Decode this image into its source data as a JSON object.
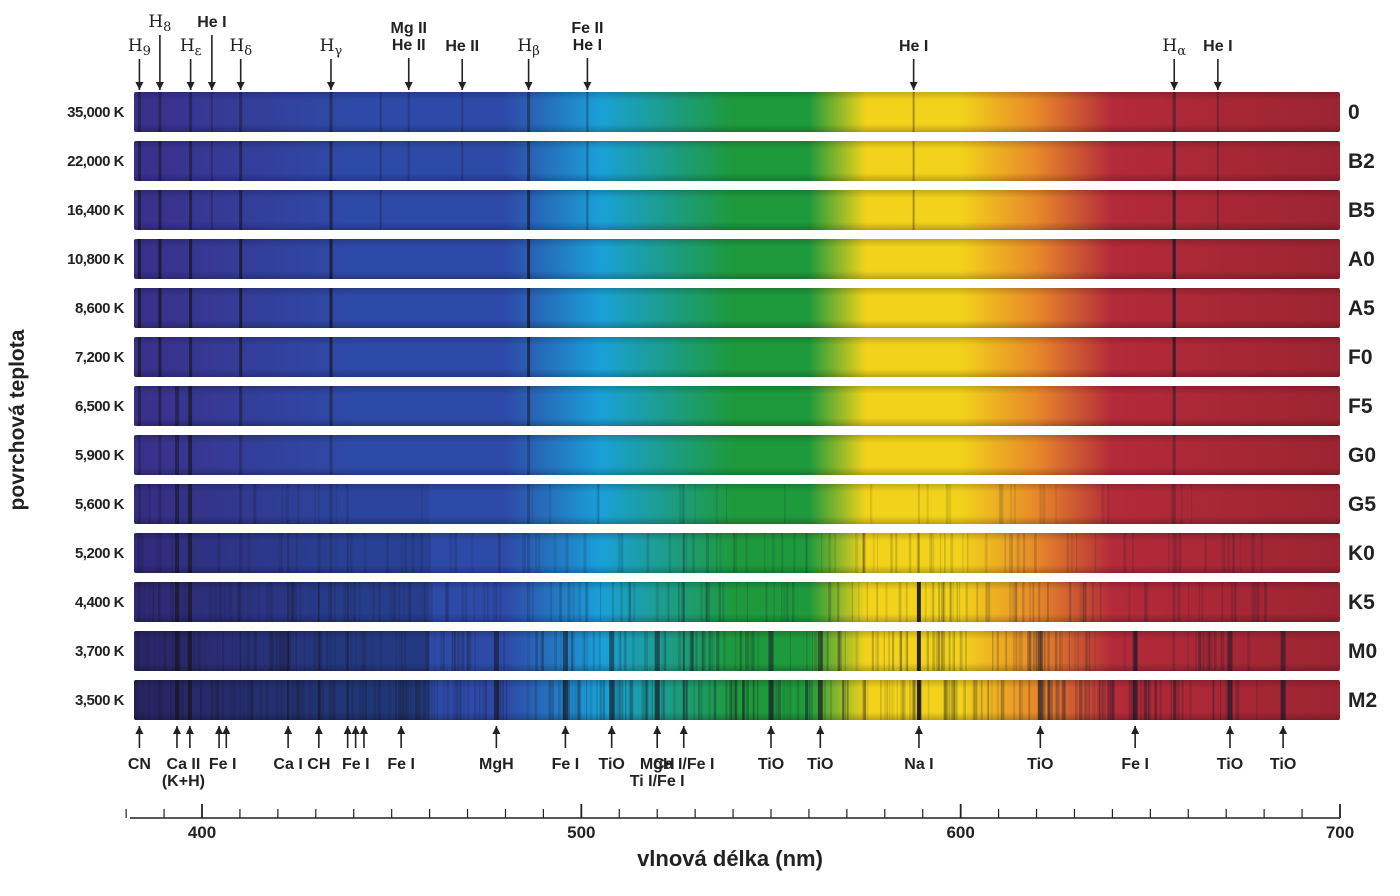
{
  "y_axis_label": "povrchová teplota",
  "x_axis_label": "vlnová délka",
  "x_axis_unit": "(nm)",
  "x_axis": {
    "min": 380,
    "max": 700,
    "major_ticks": [
      400,
      500,
      600,
      700
    ],
    "minor_step": 10
  },
  "spectral_classes": [
    {
      "temperature": "35,000 K",
      "class": "0"
    },
    {
      "temperature": "22,000 K",
      "class": "B2"
    },
    {
      "temperature": "16,400 K",
      "class": "B5"
    },
    {
      "temperature": "10,800 K",
      "class": "A0"
    },
    {
      "temperature": "8,600 K",
      "class": "A5"
    },
    {
      "temperature": "7,200 K",
      "class": "F0"
    },
    {
      "temperature": "6,500 K",
      "class": "F5"
    },
    {
      "temperature": "5,900 K",
      "class": "G0"
    },
    {
      "temperature": "5,600 K",
      "class": "G5"
    },
    {
      "temperature": "5,200 K",
      "class": "K0"
    },
    {
      "temperature": "4,400 K",
      "class": "K5"
    },
    {
      "temperature": "3,700 K",
      "class": "M0"
    },
    {
      "temperature": "3,500 K",
      "class": "M2"
    }
  ],
  "top_lines": [
    {
      "element": "H",
      "sub": "9",
      "greek": false,
      "wavelength": 383.5,
      "level": 1
    },
    {
      "element": "H",
      "sub": "8",
      "greek": false,
      "wavelength": 388.9,
      "level": 0
    },
    {
      "element": "H",
      "sub": "ε",
      "greek": true,
      "wavelength": 397.0,
      "level": 1
    },
    {
      "element": "He I",
      "sub": "",
      "greek": false,
      "wavelength": 402.6,
      "level": 0
    },
    {
      "element": "H",
      "sub": "δ",
      "greek": true,
      "wavelength": 410.2,
      "level": 1
    },
    {
      "element": "H",
      "sub": "γ",
      "greek": true,
      "wavelength": 434.0,
      "level": 1
    },
    {
      "element": "Mg II\nHe II",
      "sub": "",
      "greek": false,
      "wavelength": 454.5,
      "level": 0
    },
    {
      "element": "He II",
      "sub": "",
      "greek": false,
      "wavelength": 468.6,
      "level": 1
    },
    {
      "element": "H",
      "sub": "β",
      "greek": true,
      "wavelength": 486.1,
      "level": 1
    },
    {
      "element": "Fe II\nHe I",
      "sub": "",
      "greek": false,
      "wavelength": 501.6,
      "level": 0
    },
    {
      "element": "He I",
      "sub": "",
      "greek": false,
      "wavelength": 587.6,
      "level": 1
    },
    {
      "element": "H",
      "sub": "α",
      "greek": true,
      "wavelength": 656.3,
      "level": 1
    },
    {
      "element": "He I",
      "sub": "",
      "greek": false,
      "wavelength": 667.8,
      "level": 1
    }
  ],
  "bottom_lines": [
    {
      "label": "CN",
      "wavelengths": [
        383.5
      ]
    },
    {
      "label": "Ca II\n(K+H)",
      "wavelengths": [
        393.4,
        396.8
      ]
    },
    {
      "label": "Fe I",
      "wavelengths": [
        404.5,
        406.4
      ]
    },
    {
      "label": "Ca I",
      "wavelengths": [
        422.7
      ]
    },
    {
      "label": "CH",
      "wavelengths": [
        430.8
      ]
    },
    {
      "label": "Fe I",
      "wavelengths": [
        438.4,
        440.5,
        442.7
      ]
    },
    {
      "label": "Fe I",
      "wavelengths": [
        452.5
      ]
    },
    {
      "label": "MgH",
      "wavelengths": [
        477.6
      ]
    },
    {
      "label": "Fe I",
      "wavelengths": [
        495.8
      ]
    },
    {
      "label": "TiO",
      "wavelengths": [
        508.0
      ]
    },
    {
      "label": "MgH\nTi I/Fe I",
      "wavelengths": [
        520.0
      ]
    },
    {
      "label": "Ca I/Fe I",
      "wavelengths": [
        527.0
      ]
    },
    {
      "label": "TiO",
      "wavelengths": [
        550.0
      ]
    },
    {
      "label": "TiO",
      "wavelengths": [
        563.0
      ]
    },
    {
      "label": "Na I",
      "wavelengths": [
        589.0
      ]
    },
    {
      "label": "TiO",
      "wavelengths": [
        621.0
      ]
    },
    {
      "label": "Fe I",
      "wavelengths": [
        646.0
      ]
    },
    {
      "label": "TiO",
      "wavelengths": [
        671.0
      ]
    },
    {
      "label": "TiO",
      "wavelengths": [
        685.0
      ]
    }
  ],
  "colors": {
    "violet": "#3a2f8a",
    "blue": "#2e4aa8",
    "cyan": "#1aa0d8",
    "green": "#1e9a3c",
    "yellow": "#f2d21a",
    "orange": "#e8882a",
    "red": "#b42a3a",
    "deep_red": "#9c2432",
    "absorption": "#1a1a2a"
  }
}
